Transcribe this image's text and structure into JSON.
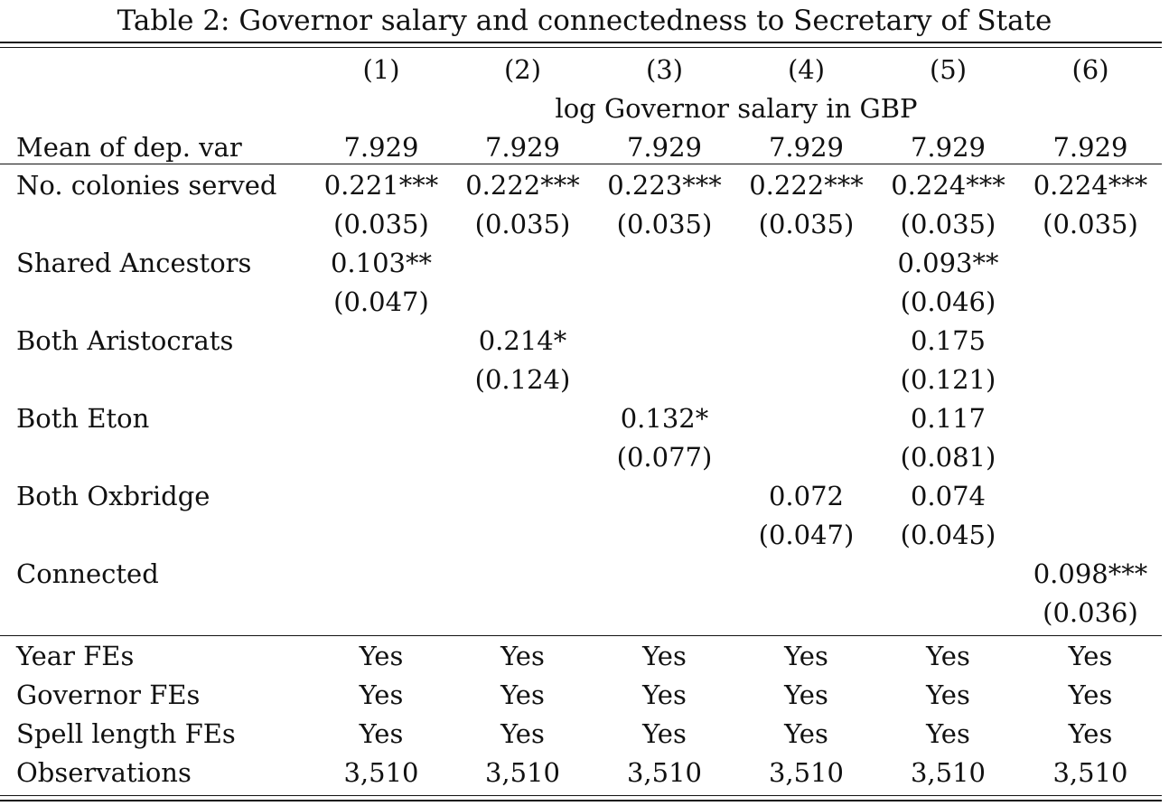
{
  "caption": "Table 2: Governor salary and connectedness to Secretary of State",
  "columns": [
    "(1)",
    "(2)",
    "(3)",
    "(4)",
    "(5)",
    "(6)"
  ],
  "dep_var": "log Governor salary in GBP",
  "mean_row": {
    "label": "Mean of dep. var",
    "values": [
      "7.929",
      "7.929",
      "7.929",
      "7.929",
      "7.929",
      "7.929"
    ]
  },
  "coef_rows": [
    {
      "label": "No. colonies served",
      "coef": [
        "0.221***",
        "0.222***",
        "0.223***",
        "0.222***",
        "0.224***",
        "0.224***"
      ],
      "se": [
        "(0.035)",
        "(0.035)",
        "(0.035)",
        "(0.035)",
        "(0.035)",
        "(0.035)"
      ]
    },
    {
      "label": "Shared Ancestors",
      "coef": [
        "0.103**",
        "",
        "",
        "",
        "0.093**",
        ""
      ],
      "se": [
        "(0.047)",
        "",
        "",
        "",
        "(0.046)",
        ""
      ]
    },
    {
      "label": "Both Aristocrats",
      "coef": [
        "",
        "0.214*",
        "",
        "",
        "0.175",
        ""
      ],
      "se": [
        "",
        "(0.124)",
        "",
        "",
        "(0.121)",
        ""
      ]
    },
    {
      "label": "Both Eton",
      "coef": [
        "",
        "",
        "0.132*",
        "",
        "0.117",
        ""
      ],
      "se": [
        "",
        "",
        "(0.077)",
        "",
        "(0.081)",
        ""
      ]
    },
    {
      "label": "Both Oxbridge",
      "coef": [
        "",
        "",
        "",
        "0.072",
        "0.074",
        ""
      ],
      "se": [
        "",
        "",
        "",
        "(0.047)",
        "(0.045)",
        ""
      ]
    },
    {
      "label": "Connected",
      "coef": [
        "",
        "",
        "",
        "",
        "",
        "0.098***"
      ],
      "se": [
        "",
        "",
        "",
        "",
        "",
        "(0.036)"
      ]
    }
  ],
  "footer_rows": [
    {
      "label": "Year FEs",
      "values": [
        "Yes",
        "Yes",
        "Yes",
        "Yes",
        "Yes",
        "Yes"
      ]
    },
    {
      "label": "Governor FEs",
      "values": [
        "Yes",
        "Yes",
        "Yes",
        "Yes",
        "Yes",
        "Yes"
      ]
    },
    {
      "label": "Spell length FEs",
      "values": [
        "Yes",
        "Yes",
        "Yes",
        "Yes",
        "Yes",
        "Yes"
      ]
    },
    {
      "label": "Observations",
      "values": [
        "3,510",
        "3,510",
        "3,510",
        "3,510",
        "3,510",
        "3,510"
      ]
    }
  ]
}
